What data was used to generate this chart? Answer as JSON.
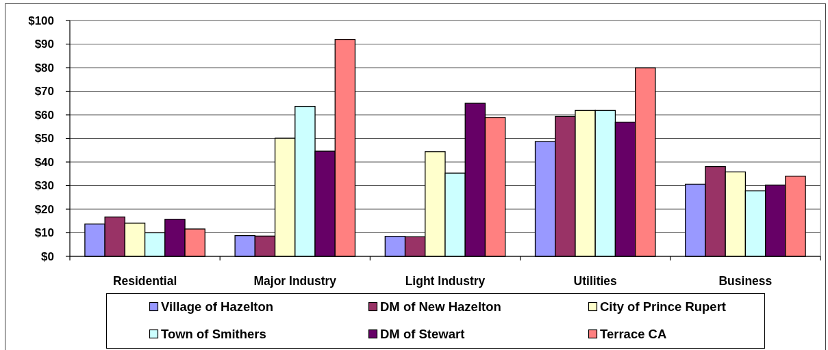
{
  "chart_data": {
    "type": "bar",
    "categories": [
      "Residential",
      "Major Industry",
      "Light Industry",
      "Utilities",
      "Business"
    ],
    "series": [
      {
        "name": "Village of Hazelton",
        "color": "#9999ff",
        "values": [
          13.7,
          8.8,
          8.5,
          48.7,
          30.6
        ]
      },
      {
        "name": "DM of New Hazelton",
        "color": "#993366",
        "values": [
          16.7,
          8.6,
          8.3,
          59.3,
          38.1
        ]
      },
      {
        "name": "City of Prince Rupert",
        "color": "#ffffcc",
        "values": [
          14.1,
          50.1,
          44.4,
          61.9,
          35.8
        ]
      },
      {
        "name": "Town of Smithers",
        "color": "#ccffff",
        "values": [
          10.0,
          63.6,
          35.3,
          61.9,
          27.8
        ]
      },
      {
        "name": "DM of Stewart",
        "color": "#660066",
        "values": [
          15.7,
          44.6,
          64.9,
          56.9,
          30.2
        ]
      },
      {
        "name": "Terrace CA",
        "color": "#ff8080",
        "values": [
          11.6,
          92.0,
          58.9,
          79.9,
          34.0
        ]
      }
    ],
    "ylim": [
      0,
      100
    ],
    "yticks": [
      {
        "value": 0,
        "label": "$0"
      },
      {
        "value": 10,
        "label": "$10"
      },
      {
        "value": 20,
        "label": "$20"
      },
      {
        "value": 30,
        "label": "$30"
      },
      {
        "value": 40,
        "label": "$40"
      },
      {
        "value": 50,
        "label": "$50"
      },
      {
        "value": 60,
        "label": "$60"
      },
      {
        "value": 70,
        "label": "$70"
      },
      {
        "value": 80,
        "label": "$80"
      },
      {
        "value": 90,
        "label": "$90"
      },
      {
        "value": 100,
        "label": "$100"
      }
    ],
    "grid": "y",
    "legend": "bottom"
  }
}
